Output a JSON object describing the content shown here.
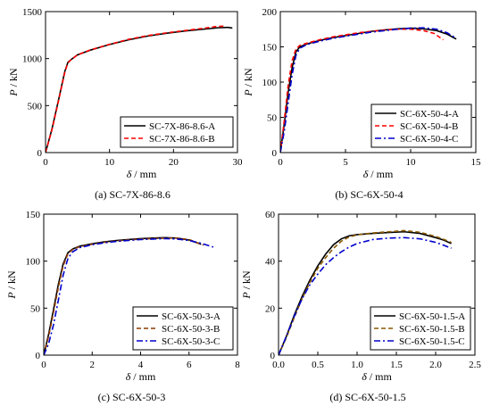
{
  "chart_data": [
    {
      "type": "line",
      "caption": "(a) SC-7X-86-8.6",
      "xlabel": "δ / mm",
      "ylabel": "P / kN",
      "xlim": [
        0,
        30
      ],
      "ylim": [
        0,
        1500
      ],
      "xticks": [
        0,
        10,
        20,
        30
      ],
      "yticks": [
        0,
        500,
        1000,
        1500
      ],
      "legend_position": "bottom-right",
      "series": [
        {
          "name": "SC-7X-86-8.6-A",
          "color": "#000000",
          "dash": "solid",
          "x": [
            0,
            1,
            2,
            3,
            3.5,
            4,
            5,
            7,
            10,
            13,
            16,
            19,
            22,
            25,
            27,
            28.5,
            29.2
          ],
          "y": [
            0,
            250,
            550,
            860,
            960,
            990,
            1040,
            1090,
            1150,
            1200,
            1240,
            1270,
            1295,
            1315,
            1328,
            1332,
            1325
          ]
        },
        {
          "name": "SC-7X-86-8.6-B",
          "color": "#ff0000",
          "dash": "dashed",
          "x": [
            0,
            1,
            2,
            3,
            3.5,
            4,
            5,
            7,
            10,
            13,
            16,
            19,
            22,
            25,
            26.5,
            27.8
          ],
          "y": [
            0,
            240,
            540,
            850,
            955,
            988,
            1040,
            1092,
            1152,
            1205,
            1245,
            1275,
            1300,
            1325,
            1340,
            1345
          ]
        }
      ]
    },
    {
      "type": "line",
      "caption": "(b) SC-6X-50-4",
      "xlabel": "δ / mm",
      "ylabel": "P / kN",
      "xlim": [
        0,
        15
      ],
      "ylim": [
        0,
        200
      ],
      "xticks": [
        0,
        5,
        10,
        15
      ],
      "yticks": [
        0,
        50,
        100,
        150,
        200
      ],
      "legend_position": "bottom-right",
      "series": [
        {
          "name": "SC-6X-50-4-A",
          "color": "#000000",
          "dash": "solid",
          "x": [
            0,
            0.3,
            0.6,
            0.9,
            1.2,
            1.5,
            2,
            3,
            4,
            5,
            6,
            7,
            8,
            9,
            10,
            11,
            12,
            12.8,
            13.5
          ],
          "y": [
            0,
            40,
            85,
            120,
            143,
            150,
            154,
            159,
            163,
            166,
            169,
            172,
            174,
            175.5,
            176.5,
            175.5,
            173,
            168,
            161
          ]
        },
        {
          "name": "SC-6X-50-4-B",
          "color": "#ff0000",
          "dash": "dashed",
          "x": [
            0,
            0.3,
            0.6,
            0.9,
            1.2,
            1.5,
            2,
            3,
            4,
            5,
            6,
            7,
            8,
            9,
            10,
            11,
            11.8,
            12.5
          ],
          "y": [
            0,
            45,
            95,
            130,
            147,
            152,
            155,
            160,
            164,
            167,
            170,
            172,
            174,
            175,
            175,
            173,
            169,
            160
          ]
        },
        {
          "name": "SC-6X-50-4-C",
          "color": "#0000cc",
          "dash": "dashdot",
          "x": [
            0,
            0.3,
            0.6,
            0.9,
            1.2,
            1.5,
            2,
            3,
            4,
            5,
            6,
            7,
            8,
            9,
            10,
            11,
            12,
            12.8,
            13.5
          ],
          "y": [
            0,
            30,
            70,
            110,
            138,
            148,
            153,
            158,
            162,
            165,
            168,
            171,
            173,
            175,
            176.5,
            177,
            175,
            170,
            162
          ]
        }
      ]
    },
    {
      "type": "line",
      "caption": "(c) SC-6X-50-3",
      "xlabel": "δ / mm",
      "ylabel": "P / kN",
      "xlim": [
        0,
        8
      ],
      "ylim": [
        0,
        150
      ],
      "xticks": [
        0,
        2,
        4,
        6,
        8
      ],
      "yticks": [
        0,
        50,
        100,
        150
      ],
      "legend_position": "bottom-right",
      "series": [
        {
          "name": "SC-6X-50-3-A",
          "color": "#000000",
          "dash": "solid",
          "x": [
            0,
            0.2,
            0.4,
            0.6,
            0.8,
            1.0,
            1.2,
            1.5,
            2,
            2.5,
            3,
            3.5,
            4,
            4.5,
            5,
            5.5,
            6,
            6.5
          ],
          "y": [
            0,
            22,
            48,
            75,
            97,
            109,
            113,
            116,
            118.5,
            120.5,
            122,
            123,
            124,
            124.5,
            125,
            124.5,
            122.5,
            118
          ]
        },
        {
          "name": "SC-6X-50-3-B",
          "color": "#8b3a00",
          "dash": "dashed",
          "x": [
            0,
            0.2,
            0.4,
            0.6,
            0.8,
            1.0,
            1.2,
            1.5,
            2,
            2.5,
            3,
            3.5,
            4,
            4.5,
            5,
            5.5,
            6,
            6.6
          ],
          "y": [
            0,
            20,
            45,
            72,
            95,
            108,
            112.5,
            115.5,
            118,
            120,
            121.5,
            122.5,
            123.5,
            124,
            124.5,
            124.5,
            123,
            117
          ]
        },
        {
          "name": "SC-6X-50-3-C",
          "color": "#0000cc",
          "dash": "dashdot",
          "x": [
            0,
            0.2,
            0.4,
            0.6,
            0.8,
            1.0,
            1.2,
            1.5,
            2,
            2.5,
            3,
            3.5,
            4,
            4.5,
            5,
            5.5,
            6,
            6.5,
            7.0
          ],
          "y": [
            0,
            12,
            32,
            58,
            85,
            103,
            110,
            114.5,
            117.5,
            119.5,
            121,
            122,
            123,
            123.5,
            124,
            123.5,
            122,
            119,
            115
          ]
        }
      ]
    },
    {
      "type": "line",
      "caption": "(d) SC-6X-50-1.5",
      "xlabel": "δ / mm",
      "ylabel": "P / kN",
      "xlim": [
        0,
        2.5
      ],
      "ylim": [
        0,
        60
      ],
      "xticks": [
        0.0,
        0.5,
        1.0,
        1.5,
        2.0,
        2.5
      ],
      "yticks": [
        0,
        20,
        40,
        60
      ],
      "legend_position": "bottom-right",
      "series": [
        {
          "name": "SC-6X-50-1.5-A",
          "color": "#000000",
          "dash": "solid",
          "x": [
            0,
            0.1,
            0.2,
            0.3,
            0.4,
            0.5,
            0.6,
            0.7,
            0.8,
            0.9,
            1.0,
            1.2,
            1.4,
            1.6,
            1.8,
            2.0,
            2.1,
            2.2
          ],
          "y": [
            0,
            8,
            17,
            25,
            32,
            38,
            43,
            47,
            49.5,
            50.8,
            51.3,
            51.8,
            52.2,
            52.5,
            51.8,
            50,
            49,
            47.5
          ]
        },
        {
          "name": "SC-6X-50-1.5-B",
          "color": "#8b5a00",
          "dash": "dashed",
          "x": [
            0,
            0.1,
            0.2,
            0.3,
            0.4,
            0.5,
            0.6,
            0.7,
            0.8,
            0.9,
            1.0,
            1.2,
            1.4,
            1.6,
            1.8,
            2.0,
            2.1,
            2.2
          ],
          "y": [
            0,
            7.5,
            16,
            24,
            31,
            37,
            41.5,
            45.5,
            48.5,
            50.3,
            51.2,
            52,
            52.5,
            53,
            52.3,
            50.5,
            49.3,
            48
          ]
        },
        {
          "name": "SC-6X-50-1.5-C",
          "color": "#0000cc",
          "dash": "dashdot",
          "x": [
            0,
            0.1,
            0.2,
            0.3,
            0.4,
            0.5,
            0.6,
            0.7,
            0.8,
            0.9,
            1.0,
            1.2,
            1.4,
            1.6,
            1.8,
            2.0,
            2.1,
            2.2
          ],
          "y": [
            0,
            8,
            16.5,
            24,
            30,
            34.5,
            38.5,
            41.5,
            44,
            46,
            47.5,
            49.2,
            49.8,
            50,
            49.5,
            48,
            46.8,
            45.5
          ]
        }
      ]
    }
  ]
}
